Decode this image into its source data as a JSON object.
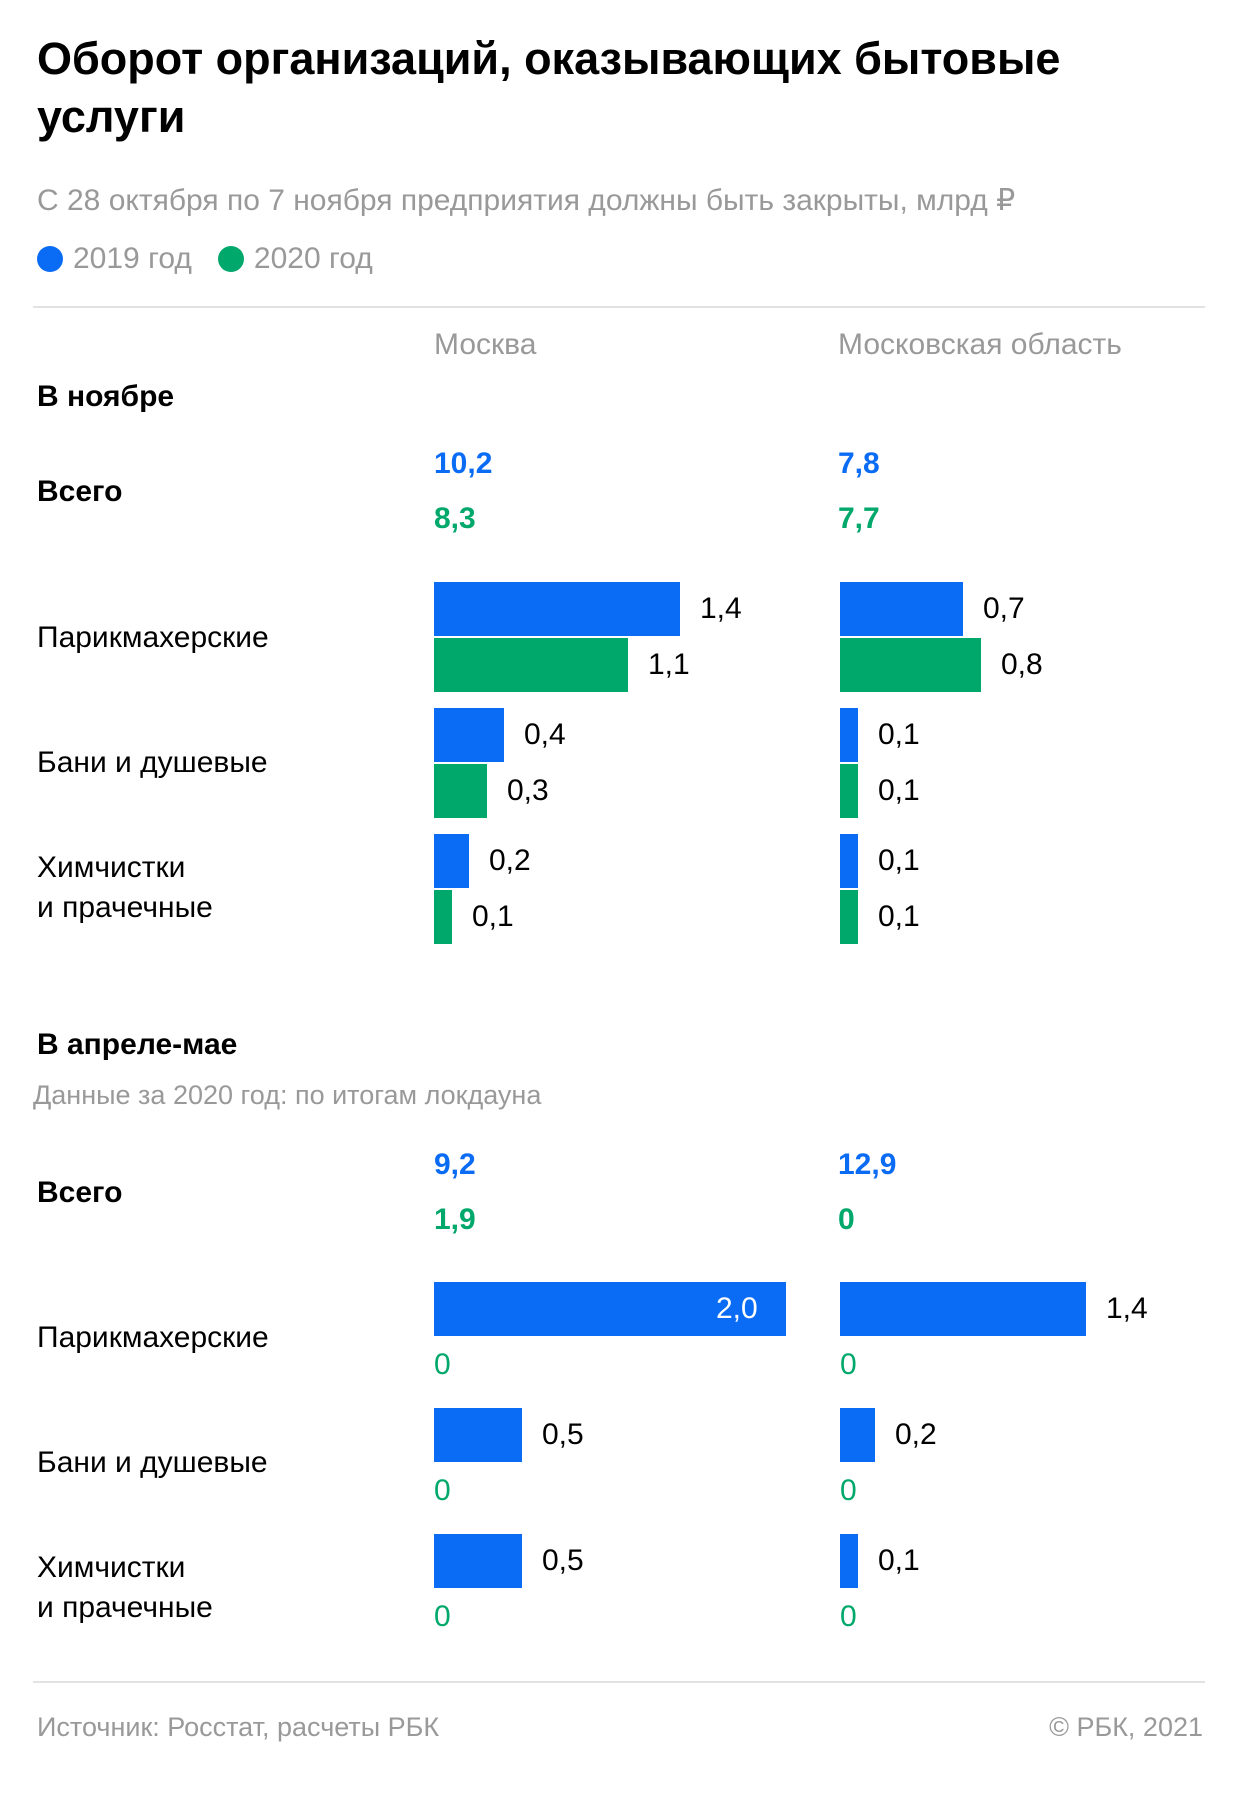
{
  "colors": {
    "y2019": "#0a6cf5",
    "y2020": "#00a86b"
  },
  "title": "Оборот организаций, оказывающих бытовые услуги",
  "subtitle": "С 28 октября по 7 ноября предприятия должны быть закрыты, млрд ₽",
  "legend": [
    {
      "label": "2019 год",
      "color": "#0a6cf5"
    },
    {
      "label": "2020 год",
      "color": "#00a86b"
    }
  ],
  "columns": [
    "Москва",
    "Московская область"
  ],
  "sections": [
    {
      "title": "В ноябре",
      "note": "",
      "total_label": "Всего",
      "totals": [
        {
          "v2019": "10,2",
          "v2020": "8,3"
        },
        {
          "v2019": "7,8",
          "v2020": "7,7"
        }
      ],
      "rows": [
        "Парикмахерские",
        "Бани и душевые",
        "Химчистки\nи прачечные"
      ]
    },
    {
      "title": "В апреле-мае",
      "note": "Данные за 2020 год: по итогам локдауна",
      "total_label": "Всего",
      "totals": [
        {
          "v2019": "9,2",
          "v2020": "1,9"
        },
        {
          "v2019": "12,9",
          "v2020": "0"
        }
      ],
      "rows": [
        "Парикмахерские",
        "Бани и душевые",
        "Химчистки\nи прачечные"
      ]
    }
  ],
  "chart_data": [
    {
      "type": "bar",
      "orientation": "horizontal",
      "title": "В ноябре",
      "categories": [
        "Парикмахерские",
        "Бани и душевые",
        "Химчистки и прачечные"
      ],
      "panels": [
        {
          "name": "Москва",
          "series": [
            {
              "name": "2019 год",
              "values": [
                1.4,
                0.4,
                0.2
              ]
            },
            {
              "name": "2020 год",
              "values": [
                1.1,
                0.3,
                0.1
              ]
            }
          ]
        },
        {
          "name": "Московская область",
          "series": [
            {
              "name": "2019 год",
              "values": [
                0.7,
                0.1,
                0.1
              ]
            },
            {
              "name": "2020 год",
              "values": [
                0.8,
                0.1,
                0.1
              ]
            }
          ]
        }
      ]
    },
    {
      "type": "bar",
      "orientation": "horizontal",
      "title": "В апреле-мае",
      "categories": [
        "Парикмахерские",
        "Бани и душевые",
        "Химчистки и прачечные"
      ],
      "panels": [
        {
          "name": "Москва",
          "series": [
            {
              "name": "2019 год",
              "values": [
                2.0,
                0.5,
                0.5
              ]
            },
            {
              "name": "2020 год",
              "values": [
                0,
                0,
                0
              ]
            }
          ]
        },
        {
          "name": "Московская область",
          "series": [
            {
              "name": "2019 год",
              "values": [
                1.4,
                0.2,
                0.1
              ]
            },
            {
              "name": "2020 год",
              "values": [
                0,
                0,
                0
              ]
            }
          ]
        }
      ]
    }
  ],
  "footer": {
    "source": "Источник: Росстат, расчеты РБК",
    "copyright": "©  РБК, 2021"
  }
}
